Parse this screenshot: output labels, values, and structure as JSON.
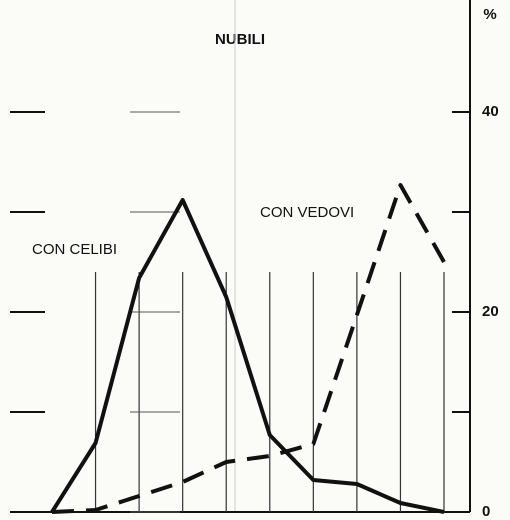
{
  "chart_data": {
    "type": "line",
    "title": "NUBILI",
    "y_axis_label": "%",
    "categories": [
      null,
      null,
      null,
      null,
      null,
      null,
      null,
      null,
      null,
      null
    ],
    "series": [
      {
        "name": "CON CELIBI",
        "color": "#111111",
        "dash": false,
        "values": [
          0,
          6.9,
          23.4,
          31.2,
          21.5,
          7.7,
          3.2,
          2.8,
          0.9,
          0
        ]
      },
      {
        "name": "CON VEDOVI",
        "color": "#111111",
        "dash": true,
        "values": [
          0,
          0.2,
          1.6,
          3,
          5,
          5.6,
          6.8,
          19.7,
          32.7,
          25
        ]
      }
    ],
    "ylim": [
      0,
      50
    ],
    "yticks": [
      0,
      20,
      40
    ],
    "minor_yticks": [
      10,
      30
    ],
    "grid": true
  }
}
